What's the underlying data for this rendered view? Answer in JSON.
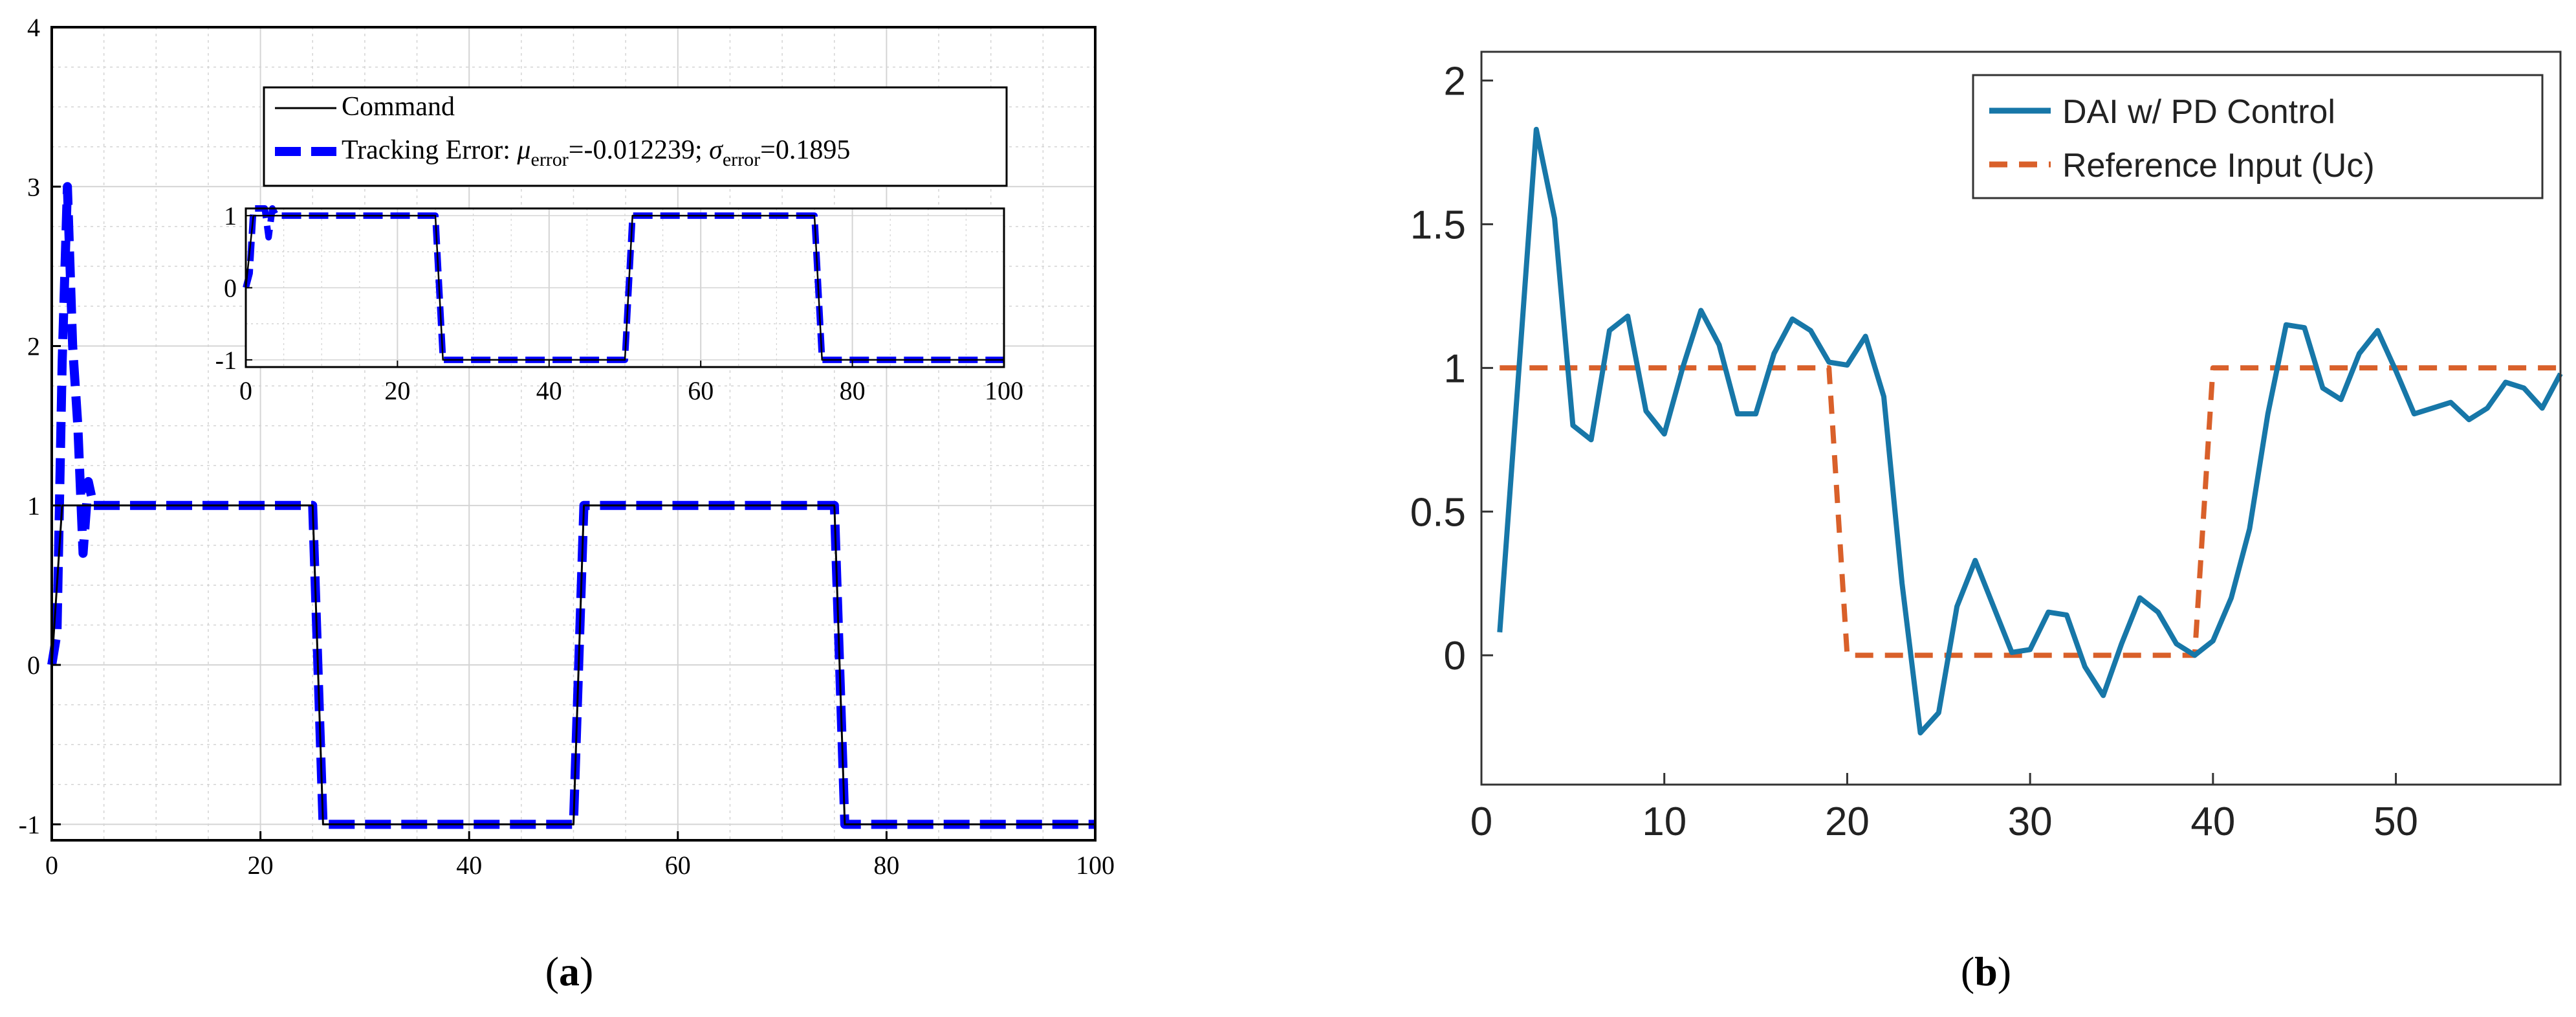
{
  "captions": {
    "a_prefix": "(",
    "a_letter": "a",
    "a_suffix": ")",
    "b_prefix": "(",
    "b_letter": "b",
    "b_suffix": ")"
  },
  "colors": {
    "command": "#000000",
    "tracking": "#0000ff",
    "dai": "#1777a8",
    "reference": "#d9602a",
    "grid_a": "#d4d4d4",
    "axes": "#000000",
    "axes_b": "#333333"
  },
  "chart_data": [
    {
      "type": "line",
      "panel": "a",
      "title": "",
      "xlabel": "",
      "ylabel": "",
      "xlim": [
        0,
        100
      ],
      "ylim": [
        -1.1,
        4
      ],
      "xticks": [
        0,
        20,
        40,
        60,
        80,
        100
      ],
      "yticks": [
        -1,
        0,
        1,
        2,
        3,
        4
      ],
      "grid": true,
      "legend_position": "top-right",
      "legend": {
        "command": "Command",
        "tracking_prefix": "Tracking Error: ",
        "mu": "μ",
        "mu_sub": "error",
        "mu_value": "=-0.012239;",
        "sigma": "σ",
        "sigma_sub": "error",
        "sigma_value": "=0.1895"
      },
      "series": [
        {
          "name": "Command",
          "style": "solid",
          "x": [
            0,
            1,
            25,
            26,
            50,
            51,
            75,
            76,
            100
          ],
          "y": [
            0,
            1,
            1,
            -1,
            -1,
            1,
            1,
            -1,
            -1
          ]
        },
        {
          "name": "Tracking Error",
          "style": "dashed",
          "x": [
            0,
            0.5,
            1,
            1.5,
            2,
            2.5,
            3,
            3.5,
            4,
            5,
            25,
            26,
            50,
            51,
            75,
            76,
            100
          ],
          "y": [
            0,
            0.2,
            1.9,
            3.0,
            2.0,
            1.5,
            0.7,
            1.15,
            1.0,
            1.0,
            1.0,
            -1.0,
            -1.0,
            1.0,
            1.0,
            -1.0,
            -1.0
          ]
        }
      ],
      "inset": {
        "xlim": [
          0,
          100
        ],
        "ylim": [
          -1.1,
          1.1
        ],
        "xticks": [
          0,
          20,
          40,
          60,
          80,
          100
        ],
        "yticks": [
          -1,
          0,
          1
        ]
      }
    },
    {
      "type": "line",
      "panel": "b",
      "title": "",
      "xlabel": "",
      "ylabel": "",
      "xlim": [
        0,
        59
      ],
      "ylim": [
        -0.45,
        2.1
      ],
      "xticks": [
        0,
        10,
        20,
        30,
        40,
        50
      ],
      "yticks": [
        0,
        0.5,
        1,
        1.5,
        2
      ],
      "grid": false,
      "legend_position": "top-right",
      "series": [
        {
          "name": "DAI w/ PD Control",
          "style": "solid",
          "x": [
            1,
            2,
            3,
            4,
            5,
            6,
            7,
            8,
            9,
            10,
            11,
            12,
            13,
            14,
            15,
            16,
            17,
            18,
            19,
            20,
            21,
            22,
            23,
            24,
            25,
            26,
            27,
            28,
            29,
            30,
            31,
            32,
            33,
            34,
            35,
            36,
            37,
            38,
            39,
            40,
            41,
            42,
            43,
            44,
            45,
            46,
            47,
            48,
            49,
            50,
            51,
            52,
            53,
            54,
            55,
            56,
            57,
            58,
            59
          ],
          "y": [
            0.08,
            0.95,
            1.83,
            1.52,
            0.8,
            0.75,
            1.13,
            1.18,
            0.85,
            0.77,
            1.0,
            1.2,
            1.08,
            0.84,
            0.84,
            1.05,
            1.17,
            1.13,
            1.02,
            1.01,
            1.11,
            0.9,
            0.25,
            -0.27,
            -0.2,
            0.17,
            0.33,
            0.17,
            0.01,
            0.02,
            0.15,
            0.14,
            -0.04,
            -0.14,
            0.04,
            0.2,
            0.15,
            0.04,
            0.0,
            0.05,
            0.2,
            0.44,
            0.84,
            1.15,
            1.14,
            0.93,
            0.89,
            1.05,
            1.13,
            0.99,
            0.84,
            0.86,
            0.88,
            0.82,
            0.86,
            0.95,
            0.93,
            0.86,
            0.98
          ]
        },
        {
          "name": "Reference Input (Uc)",
          "style": "dashed",
          "x": [
            1,
            19,
            20,
            39,
            40,
            59
          ],
          "y": [
            1,
            1,
            0,
            0,
            1,
            1
          ]
        }
      ]
    }
  ]
}
